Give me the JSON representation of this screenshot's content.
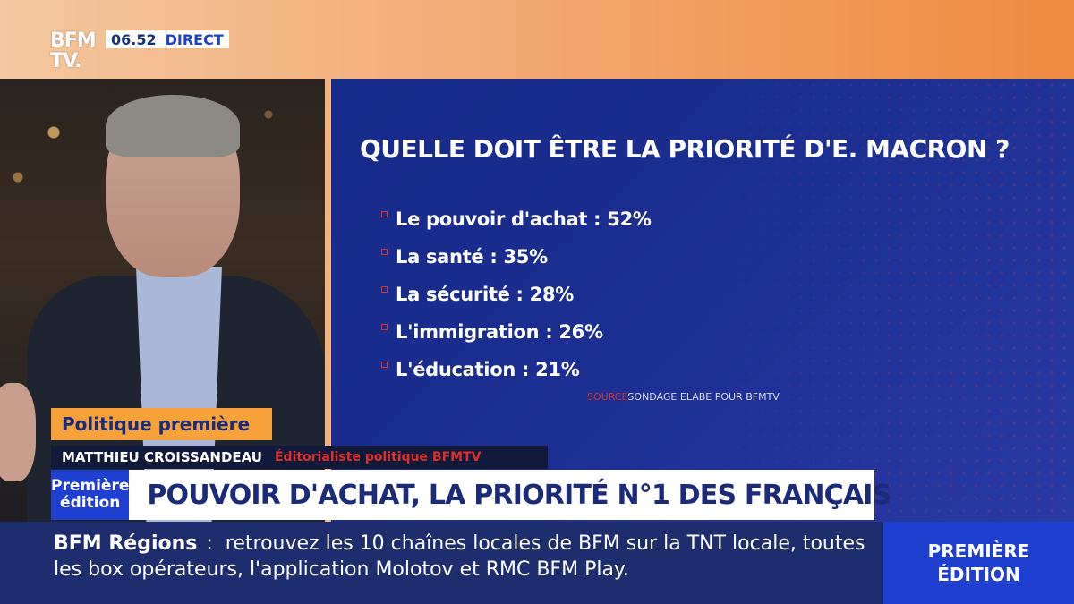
{
  "channel": {
    "logo_line1": "BFM",
    "logo_line2": "TV.",
    "time": "06.52",
    "live_label": "DIRECT"
  },
  "panel": {
    "title": "QUELLE DOIT ÊTRE LA PRIORITÉ D'E. MACRON ?",
    "items": [
      {
        "label": "Le pouvoir d'achat : 52%"
      },
      {
        "label": "La santé : 35%"
      },
      {
        "label": "La sécurité : 28%"
      },
      {
        "label": "L'immigration : 26%"
      },
      {
        "label": "L'éducation : 21%"
      }
    ],
    "source_key": "SOURCE",
    "source_text": "SONDAGE ELABE POUR BFMTV"
  },
  "lower_third": {
    "segment": "Politique première",
    "guest_name": "MATTHIEU CROISSANDEAU",
    "guest_role": "Éditorialiste politique BFMTV",
    "show_line1": "Première",
    "show_line2": "édition",
    "headline": "POUVOIR D'ACHAT, LA PRIORITÉ N°1 DES FRANÇAIS"
  },
  "ticker": {
    "label": "BFM Régions",
    "separator": ":",
    "text": "retrouvez les 10 chaînes locales de BFM sur la TNT locale, toutes les box opérateurs, l'application Molotov et RMC BFM Play."
  },
  "corner": {
    "line1": "PREMIÈRE",
    "line2": "ÉDITION"
  },
  "colors": {
    "panel_blue": "#1c2f92",
    "accent_orange": "#f6a13a",
    "accent_red": "#e0302a",
    "ticker_navy": "#1e2d6e"
  }
}
